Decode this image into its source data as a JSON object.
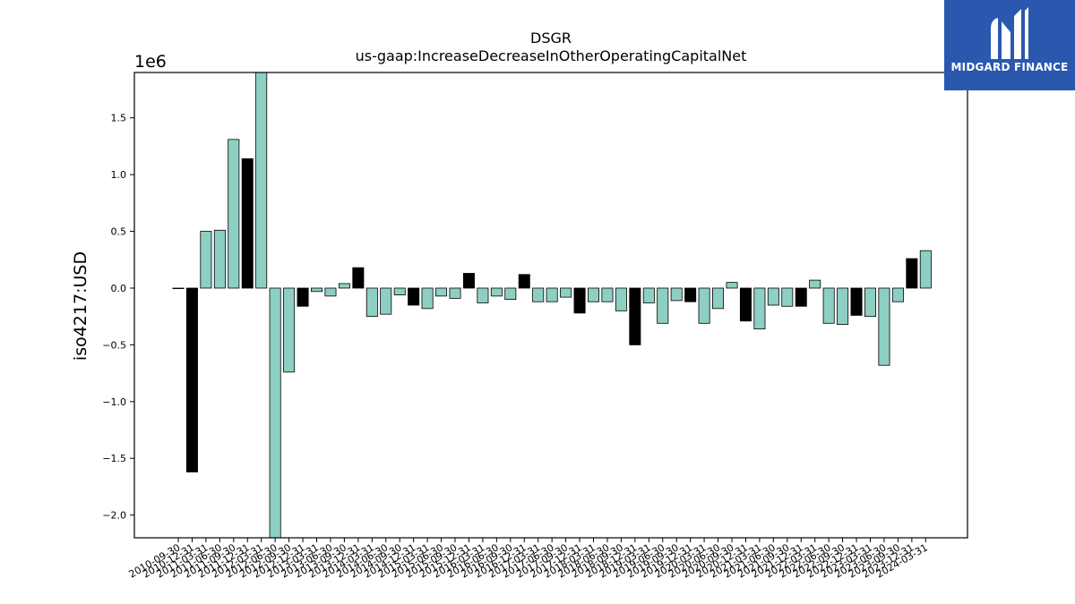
{
  "chart_data": {
    "type": "bar",
    "title": "DSGR",
    "subtitle": "us-gaap:IncreaseDecreaseInOtherOperatingCapitalNet",
    "ylabel": "iso4217:USD",
    "xlabel": "",
    "y_offset_label": "1e6",
    "ylim": [
      -2.2,
      1.9
    ],
    "y_ticks": [
      -2.0,
      -1.5,
      -1.0,
      -0.5,
      0.0,
      0.5,
      1.0,
      1.5
    ],
    "y_tick_labels": [
      "−2.0",
      "−1.5",
      "−1.0",
      "−0.5",
      "0.0",
      "0.5",
      "1.0",
      "1.5"
    ],
    "grid": false,
    "colors": {
      "bar_default": "#8ecfc3",
      "bar_highlight": "#000000",
      "edge": "#000000"
    },
    "categories": [
      "2010-09-30",
      "2010-12-31",
      "2011-03-31",
      "2011-06-30",
      "2011-09-30",
      "2011-12-31",
      "2012-03-31",
      "2012-06-30",
      "2012-09-30",
      "2012-12-31",
      "2013-03-31",
      "2013-06-30",
      "2013-09-30",
      "2013-12-31",
      "2014-03-31",
      "2014-06-30",
      "2014-09-30",
      "2014-12-31",
      "2015-03-31",
      "2015-06-30",
      "2015-09-30",
      "2015-12-31",
      "2016-03-31",
      "2016-06-30",
      "2016-09-30",
      "2016-12-31",
      "2017-03-31",
      "2017-06-30",
      "2017-09-30",
      "2017-12-31",
      "2018-03-31",
      "2018-06-30",
      "2018-09-30",
      "2018-12-31",
      "2019-03-31",
      "2019-06-30",
      "2019-09-30",
      "2019-12-31",
      "2020-03-31",
      "2020-06-30",
      "2020-09-30",
      "2020-12-31",
      "2021-03-31",
      "2021-06-30",
      "2021-09-30",
      "2021-12-31",
      "2022-03-31",
      "2022-06-30",
      "2022-09-30",
      "2022-12-31",
      "2023-03-31",
      "2023-06-30",
      "2023-09-30",
      "2023-12-31",
      "2024-03-31"
    ],
    "values": [
      0.0,
      -1.62,
      0.5,
      0.51,
      1.31,
      1.14,
      1.9,
      -2.2,
      -0.74,
      -0.16,
      -0.03,
      -0.07,
      0.04,
      0.18,
      -0.25,
      -0.23,
      -0.06,
      -0.15,
      -0.18,
      -0.07,
      -0.09,
      0.13,
      -0.13,
      -0.07,
      -0.1,
      0.12,
      -0.12,
      -0.12,
      -0.08,
      -0.22,
      -0.12,
      -0.12,
      -0.2,
      -0.5,
      -0.13,
      -0.31,
      -0.11,
      -0.12,
      -0.31,
      -0.18,
      0.05,
      -0.29,
      -0.36,
      -0.15,
      -0.16,
      -0.16,
      0.07,
      -0.31,
      -0.32,
      -0.24,
      -0.25,
      -0.68,
      -0.12,
      0.26,
      0.33
    ],
    "highlight": [
      false,
      true,
      false,
      false,
      false,
      true,
      false,
      false,
      false,
      true,
      false,
      false,
      false,
      true,
      false,
      false,
      false,
      true,
      false,
      false,
      false,
      true,
      false,
      false,
      false,
      true,
      false,
      false,
      false,
      true,
      false,
      false,
      false,
      true,
      false,
      false,
      false,
      true,
      false,
      false,
      false,
      true,
      false,
      false,
      false,
      true,
      false,
      false,
      false,
      true,
      false,
      false,
      false,
      true,
      false
    ]
  },
  "logo": {
    "text": "MIDGARD FINANCE",
    "icon": "midgard-logo-icon"
  }
}
